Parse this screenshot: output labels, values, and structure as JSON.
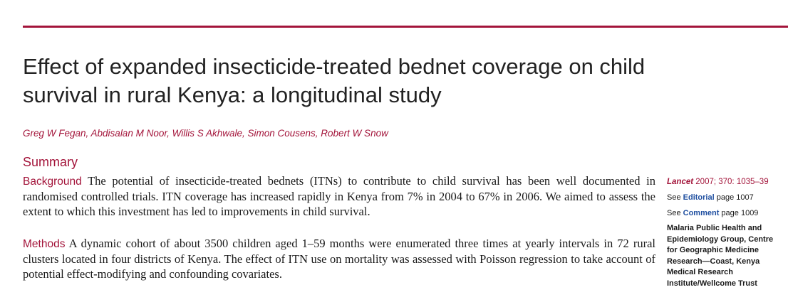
{
  "article": {
    "title": "Effect of expanded insecticide-treated bednet coverage on child survival in rural Kenya: a longitudinal study",
    "authors": "Greg W Fegan, Abdisalan M Noor, Willis S Akhwale, Simon Cousens, Robert W Snow"
  },
  "summary": {
    "heading": "Summary",
    "background_label": "Background",
    "background_text": " The potential of insecticide-treated bednets (ITNs) to contribute to child survival has been well documented in randomised controlled trials. ITN coverage has increased rapidly in Kenya from 7% in 2004 to 67% in 2006. We aimed to assess the extent to which this investment has led to improvements in child survival.",
    "methods_label": "Methods",
    "methods_text": " A dynamic cohort of about 3500 children aged 1–59 months were enumerated three times at yearly intervals in 72 rural clusters located in four districts of Kenya. The effect of ITN use on mortality was assessed with Poisson regression to take account of potential effect-modifying and confounding covariates."
  },
  "sidebar": {
    "journal": "Lancet",
    "citation": " 2007; 370: 1035–39",
    "editorial_prefix": "See ",
    "editorial_link": "Editorial",
    "editorial_page": " page 1007",
    "comment_prefix": "See ",
    "comment_link": "Comment",
    "comment_page": " page 1009",
    "affiliation": "Malaria Public Health and Epidemiology Group, Centre for Geographic Medicine Research—Coast, Kenya Medical Research Institute/Wellcome Trust"
  }
}
